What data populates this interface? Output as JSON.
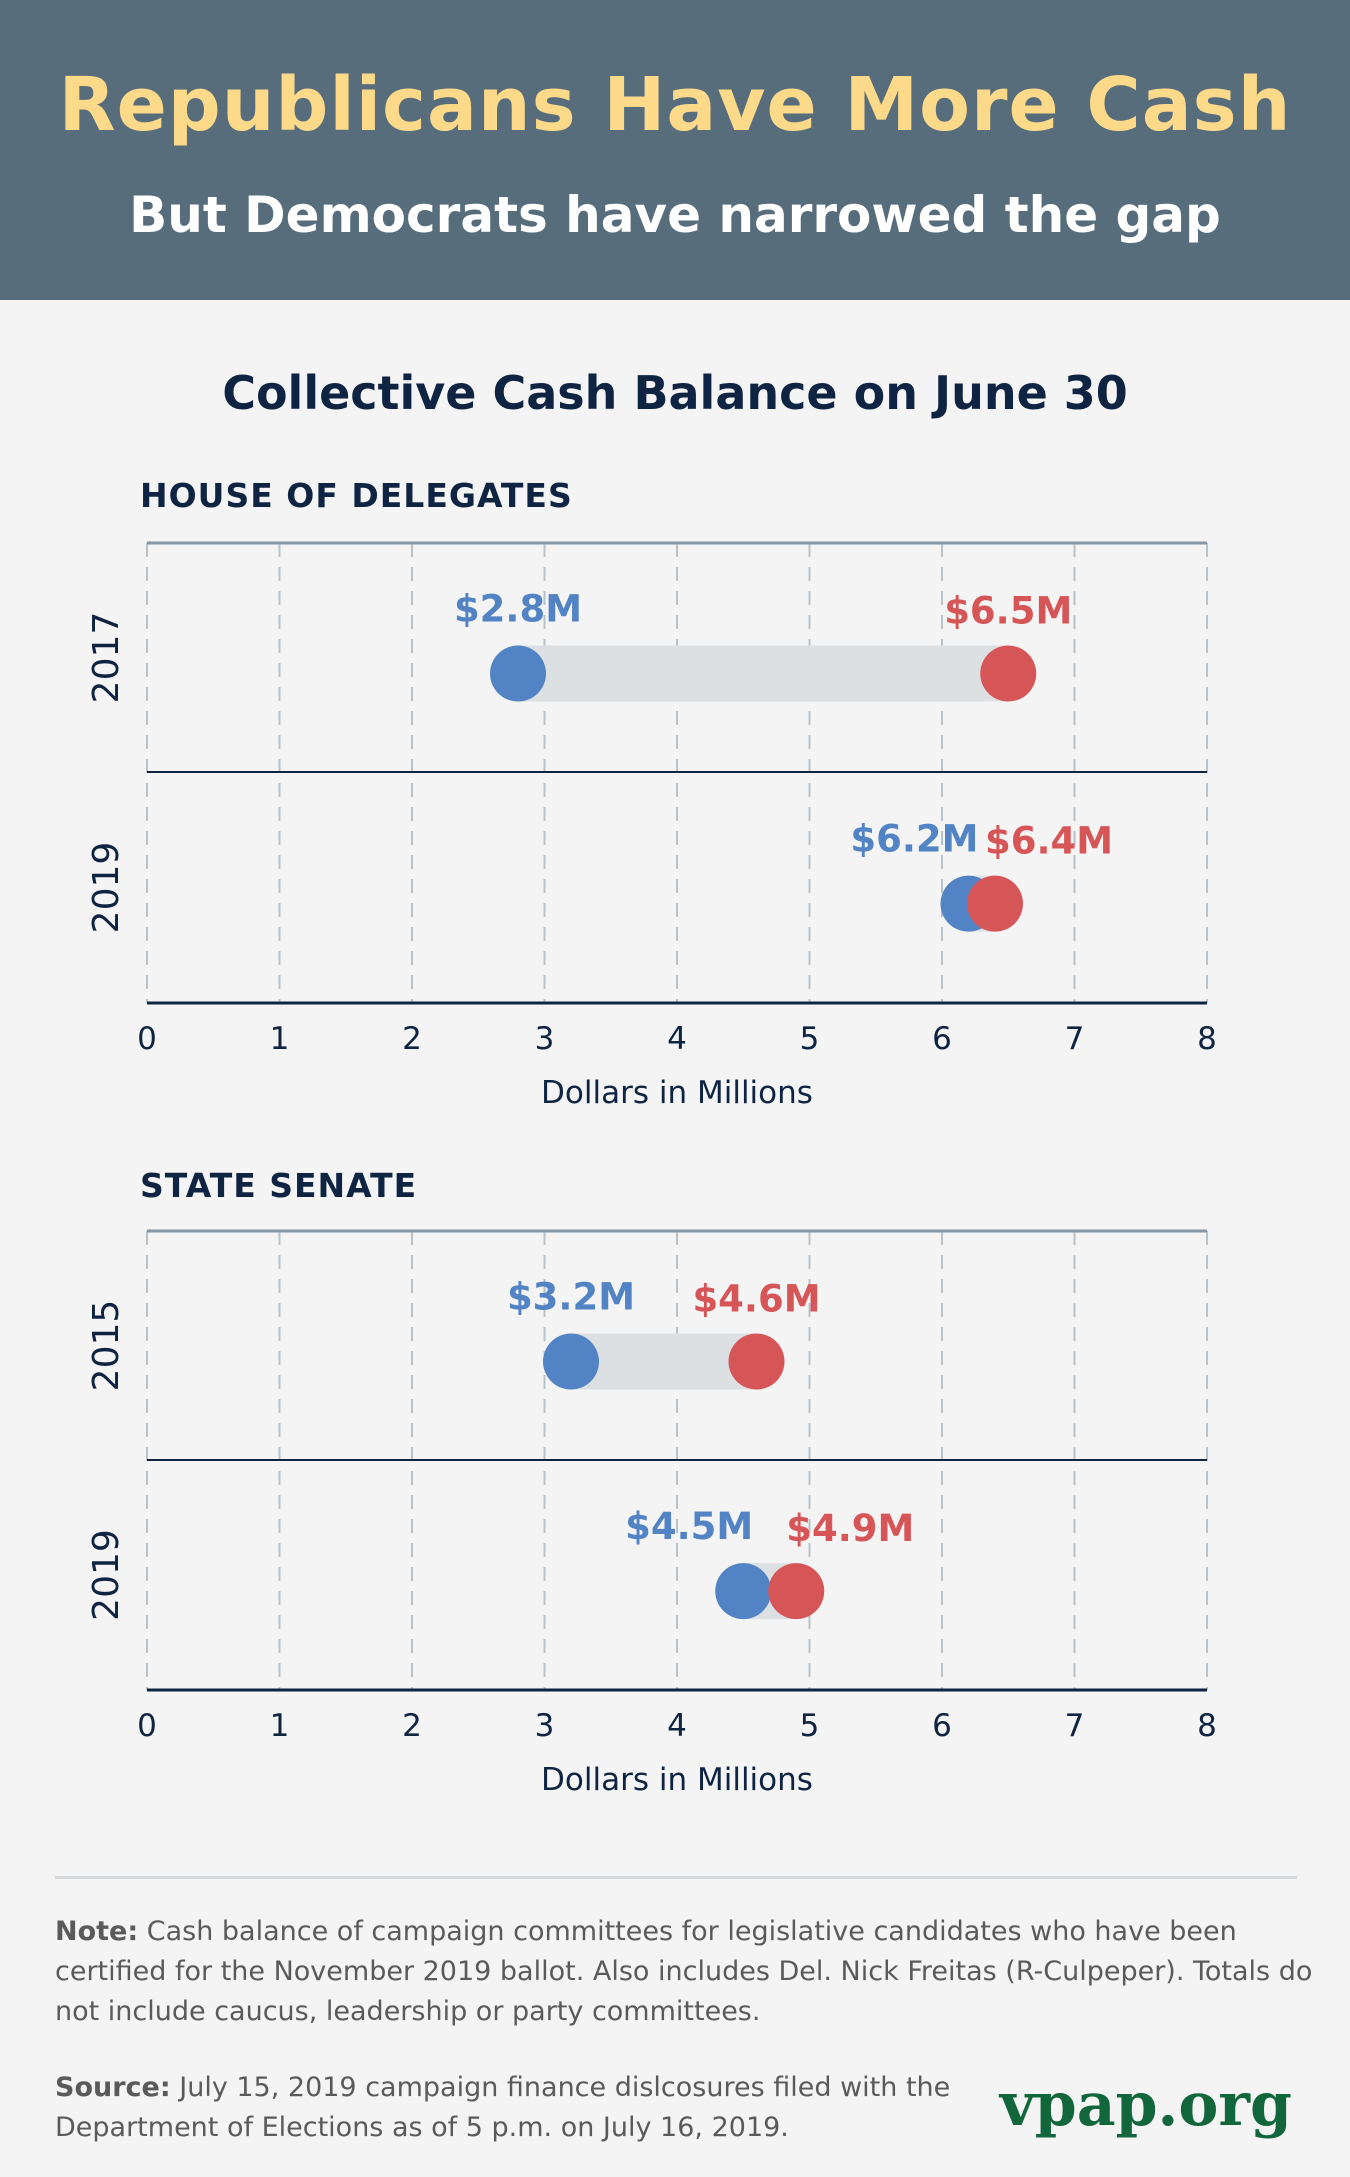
{
  "header": {
    "title": "Republicans Have More Cash",
    "subtitle": "But Democrats have narrowed the gap"
  },
  "colors": {
    "header_bg": "#586d7c",
    "title": "#fdd98a",
    "democrat": "#5283c4",
    "republican": "#d65557",
    "gap_bar": "#dde0e3",
    "axis_text": "#0e2442",
    "brand": "#11673b"
  },
  "chart_data": {
    "type": "dumbbell",
    "title": "Collective Cash Balance on June 30",
    "xlabel": "Dollars in Millions",
    "xlim": [
      0,
      8
    ],
    "xticks": [
      "0",
      "1",
      "2",
      "3",
      "4",
      "5",
      "6",
      "7",
      "8"
    ],
    "grid": true,
    "panels": [
      {
        "name": "HOUSE OF DELEGATES",
        "rows": [
          {
            "year": "2017",
            "democrat": 2.8,
            "republican": 6.5,
            "dem_label": "$2.8M",
            "rep_label": "$6.5M"
          },
          {
            "year": "2019",
            "democrat": 6.2,
            "republican": 6.4,
            "dem_label": "$6.2M",
            "rep_label": "$6.4M"
          }
        ]
      },
      {
        "name": "STATE SENATE",
        "rows": [
          {
            "year": "2015",
            "democrat": 3.2,
            "republican": 4.6,
            "dem_label": "$3.2M",
            "rep_label": "$4.6M"
          },
          {
            "year": "2019",
            "democrat": 4.5,
            "republican": 4.9,
            "dem_label": "$4.5M",
            "rep_label": "$4.9M"
          }
        ]
      }
    ]
  },
  "footer": {
    "note_label": "Note:",
    "note_text": " Cash balance of campaign committees for legislative candidates who have been certified for the November 2019 ballot. Also includes Del. Nick Freitas (R-Culpeper). Totals do not include caucus, leadership or party committees.",
    "source_label": "Source:",
    "source_text": " July 15, 2019 campaign finance dislcosures filed with the Department of Elections as of 5 p.m. on July 16, 2019.",
    "brand": "vpap.org"
  }
}
